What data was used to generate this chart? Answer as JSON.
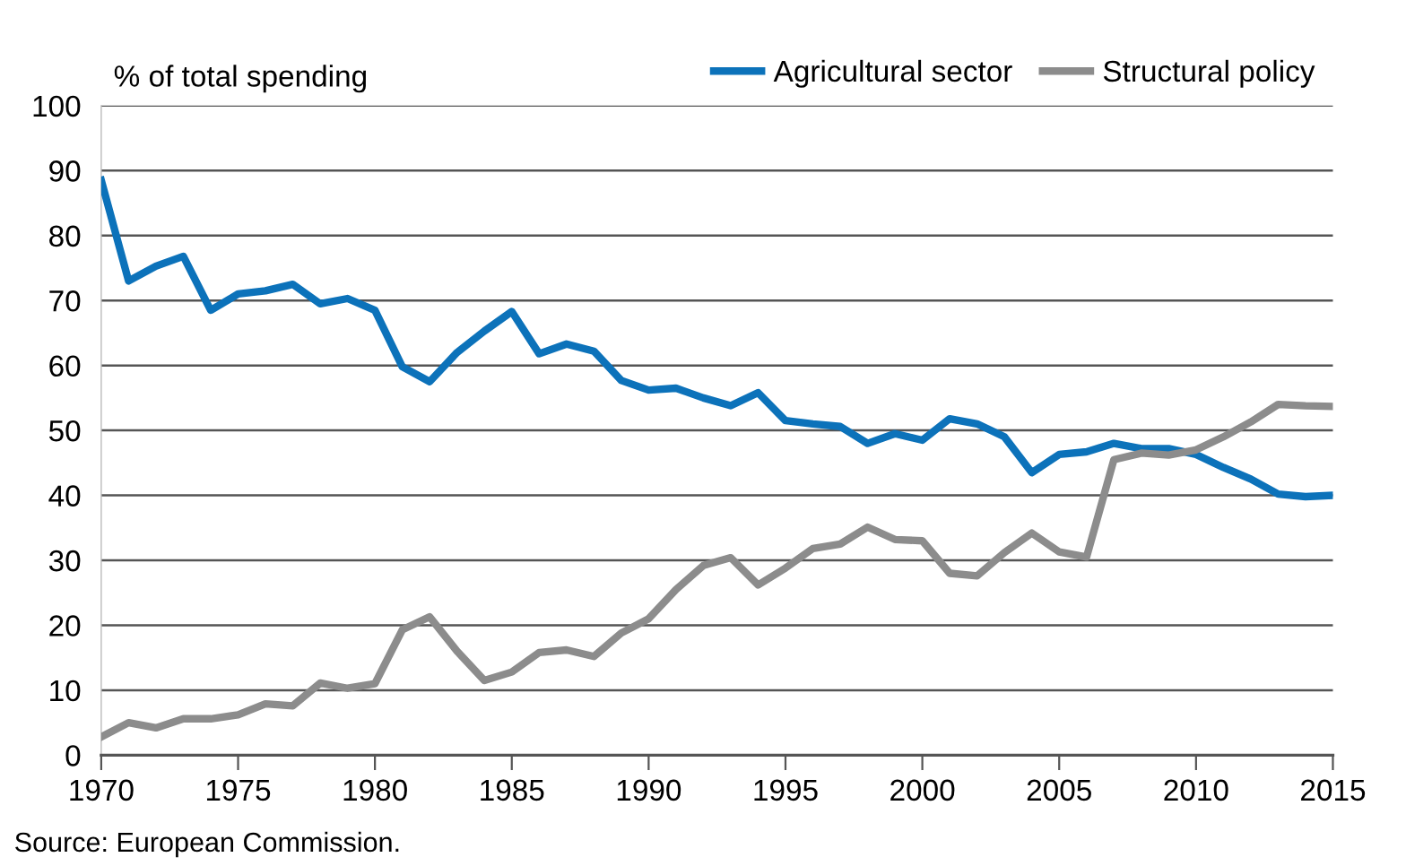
{
  "chart_data": {
    "type": "line",
    "ylabel": "% of total spending",
    "annotations": [
      "Source: European Commission."
    ],
    "x": [
      1970,
      1971,
      1972,
      1973,
      1974,
      1975,
      1976,
      1977,
      1978,
      1979,
      1980,
      1981,
      1982,
      1983,
      1984,
      1985,
      1986,
      1987,
      1988,
      1989,
      1990,
      1991,
      1992,
      1993,
      1994,
      1995,
      1996,
      1997,
      1998,
      1999,
      2000,
      2001,
      2002,
      2003,
      2004,
      2005,
      2006,
      2007,
      2008,
      2009,
      2010,
      2011,
      2012,
      2013,
      2014,
      2015
    ],
    "series": [
      {
        "name": "Agricultural sector",
        "color": "#0c72ba",
        "values": [
          88.5,
          73,
          75.3,
          76.8,
          68.5,
          71,
          71.5,
          72.5,
          69.5,
          70.3,
          68.5,
          59.8,
          57.5,
          62,
          65.3,
          68.3,
          61.8,
          63.3,
          62.2,
          57.7,
          56.2,
          56.5,
          55,
          53.8,
          55.8,
          51.5,
          51,
          50.6,
          48,
          49.5,
          48.5,
          51.8,
          51,
          49,
          43.5,
          46.3,
          46.7,
          48,
          47.2,
          47.2,
          46.3,
          44.3,
          42.5,
          40.2,
          39.8,
          40
        ]
      },
      {
        "name": "Structural policy",
        "color": "#8c8c8c",
        "values": [
          2.8,
          5,
          4.2,
          5.6,
          5.6,
          6.2,
          7.9,
          7.6,
          11.1,
          10.3,
          11,
          19.3,
          21.3,
          16,
          11.5,
          12.8,
          15.8,
          16.2,
          15.2,
          18.8,
          21,
          25.5,
          29.2,
          30.4,
          26.2,
          28.8,
          31.8,
          32.5,
          35.1,
          33.2,
          33,
          28,
          27.6,
          31.2,
          34.2,
          31.3,
          30.5,
          45.5,
          46.5,
          46.2,
          47,
          49,
          51.3,
          54,
          53.8,
          53.7
        ]
      }
    ],
    "xlim": [
      1970,
      2015
    ],
    "xticks": [
      1970,
      1975,
      1980,
      1985,
      1990,
      1995,
      2000,
      2005,
      2010,
      2015
    ],
    "ylim": [
      0,
      100
    ],
    "yticks": [
      0,
      10,
      20,
      30,
      40,
      50,
      60,
      70,
      80,
      90,
      100
    ],
    "grid": "y",
    "legend": "top right",
    "marker": "none",
    "line_style": "solid"
  }
}
